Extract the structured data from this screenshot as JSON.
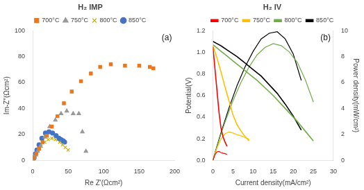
{
  "chart_data": [
    {
      "type": "scatter",
      "title": "H₂ IMP",
      "x_label": "Re Z'(Ωcm²)",
      "y_label": "Im-Z″(Ωcm²)",
      "annotations": [
        "(a)"
      ],
      "xlim": [
        0,
        200
      ],
      "xticks": [
        0,
        50,
        100,
        150,
        200
      ],
      "ylim": [
        0,
        100
      ],
      "yticks": [
        0,
        20,
        40,
        60,
        80,
        100
      ],
      "grid": false,
      "legend": "top",
      "series": [
        {
          "name": "700°C",
          "color": "#E87722",
          "marker": "square",
          "x": [
            2,
            5,
            9,
            14,
            20,
            27,
            35,
            44,
            55,
            68,
            82,
            95,
            110,
            130,
            150,
            165,
            170
          ],
          "values": [
            2,
            5,
            9,
            14,
            19,
            26,
            34,
            44,
            53,
            61,
            67,
            72,
            74,
            73,
            73,
            72,
            71
          ]
        },
        {
          "name": "750°C",
          "color": "#999999",
          "marker": "triangle",
          "x": [
            2,
            4,
            7,
            11,
            17,
            24,
            32,
            40,
            48,
            57,
            65,
            70,
            75
          ],
          "values": [
            2,
            4,
            7,
            11,
            18,
            26,
            31,
            36,
            38,
            36,
            36,
            22,
            7
          ]
        },
        {
          "name": "800°C",
          "color": "#CCAA00",
          "marker": "x",
          "x": [
            1,
            3,
            5,
            8,
            12,
            17,
            22,
            27,
            32,
            38,
            42,
            46,
            50
          ],
          "values": [
            1,
            3,
            5,
            8,
            11,
            14,
            16,
            17,
            16,
            14,
            12,
            10,
            8
          ]
        },
        {
          "name": "850°C",
          "color": "#4472C4",
          "marker": "circle",
          "x": [
            0.5,
            2,
            4,
            6,
            9,
            13,
            18,
            23,
            28,
            33,
            37,
            40,
            43,
            45
          ],
          "values": [
            0.5,
            2,
            5,
            8,
            12,
            17,
            21,
            22,
            21,
            19,
            17,
            16,
            15,
            14
          ]
        }
      ]
    },
    {
      "type": "line",
      "title": "H₂ IV",
      "x_label": "Current density(mA/cm²)",
      "y_label": "Potential(V)",
      "y2_label": "Power density(mW/cm²)",
      "annotations": [
        "(b)"
      ],
      "xlim": [
        0,
        30
      ],
      "xticks": [
        0,
        5,
        10,
        15,
        20,
        25,
        30
      ],
      "ylim": [
        0,
        1.2
      ],
      "yticks": [
        {
          "value": 0,
          "label": "0.0"
        },
        0.2,
        0.4,
        0.6,
        0.8,
        {
          "value": 1,
          "label": "1.0"
        },
        1.2
      ],
      "y2lim": [
        0,
        10
      ],
      "y2ticks": [
        0,
        2,
        4,
        6,
        8,
        10
      ],
      "grid": false,
      "legend": "top",
      "series": [
        {
          "name": "700°C",
          "color": "#FF0000",
          "x": [
            0,
            0.5,
            1.0,
            1.5,
            2.0,
            2.5,
            3.0,
            3.5
          ],
          "values": [
            1.05,
            0.85,
            0.65,
            0.45,
            0.3,
            0.22,
            0.17,
            0.13
          ]
        },
        {
          "name": "750°C",
          "color": "#FFC000",
          "x": [
            0,
            1,
            2,
            3,
            4,
            5,
            6,
            7,
            8,
            9
          ],
          "values": [
            1.06,
            0.95,
            0.82,
            0.68,
            0.55,
            0.42,
            0.33,
            0.27,
            0.22,
            0.18
          ]
        },
        {
          "name": "800°C",
          "color": "#70AD47",
          "x": [
            0,
            1,
            2,
            3,
            5,
            7,
            9,
            11,
            13,
            15,
            17,
            19,
            21,
            23,
            25
          ],
          "values": [
            1.07,
            1.04,
            1.01,
            0.98,
            0.92,
            0.86,
            0.8,
            0.74,
            0.67,
            0.6,
            0.52,
            0.44,
            0.36,
            0.27,
            0.18
          ]
        },
        {
          "name": "850°C",
          "color": "#000000",
          "x": [
            0,
            1,
            2,
            4,
            6,
            8,
            10,
            12,
            14,
            16,
            18,
            20,
            22
          ],
          "values": [
            1.1,
            1.08,
            1.06,
            1.01,
            0.96,
            0.9,
            0.84,
            0.78,
            0.7,
            0.62,
            0.52,
            0.41,
            0.28
          ]
        },
        {
          "color": "#FF0000",
          "axis": "y2",
          "x": [
            0,
            0.5,
            1.0,
            1.5,
            2.0,
            2.5,
            3.0,
            3.5
          ],
          "values": [
            0,
            0.43,
            0.65,
            0.68,
            0.6,
            0.55,
            0.51,
            0.46
          ]
        },
        {
          "color": "#FFC000",
          "axis": "y2",
          "x": [
            0,
            1,
            2,
            3,
            4,
            5,
            6,
            7,
            8,
            9
          ],
          "values": [
            0,
            0.95,
            1.64,
            2.04,
            2.2,
            2.1,
            1.98,
            1.89,
            1.76,
            1.62
          ]
        },
        {
          "color": "#70AD47",
          "axis": "y2",
          "x": [
            0,
            1,
            2,
            3,
            5,
            7,
            9,
            11,
            13,
            15,
            17,
            19,
            21,
            23,
            25
          ],
          "values": [
            0,
            1.04,
            2.02,
            2.94,
            4.6,
            6.02,
            7.2,
            8.14,
            8.71,
            9.0,
            8.84,
            8.36,
            7.56,
            6.21,
            4.5
          ]
        },
        {
          "color": "#000000",
          "axis": "y2",
          "x": [
            0,
            1,
            2,
            4,
            6,
            8,
            10,
            12,
            14,
            16,
            18,
            20,
            22
          ],
          "values": [
            0,
            1.08,
            2.12,
            4.04,
            5.76,
            7.2,
            8.4,
            9.36,
            9.8,
            9.92,
            9.36,
            8.2,
            6.16
          ]
        }
      ]
    }
  ]
}
